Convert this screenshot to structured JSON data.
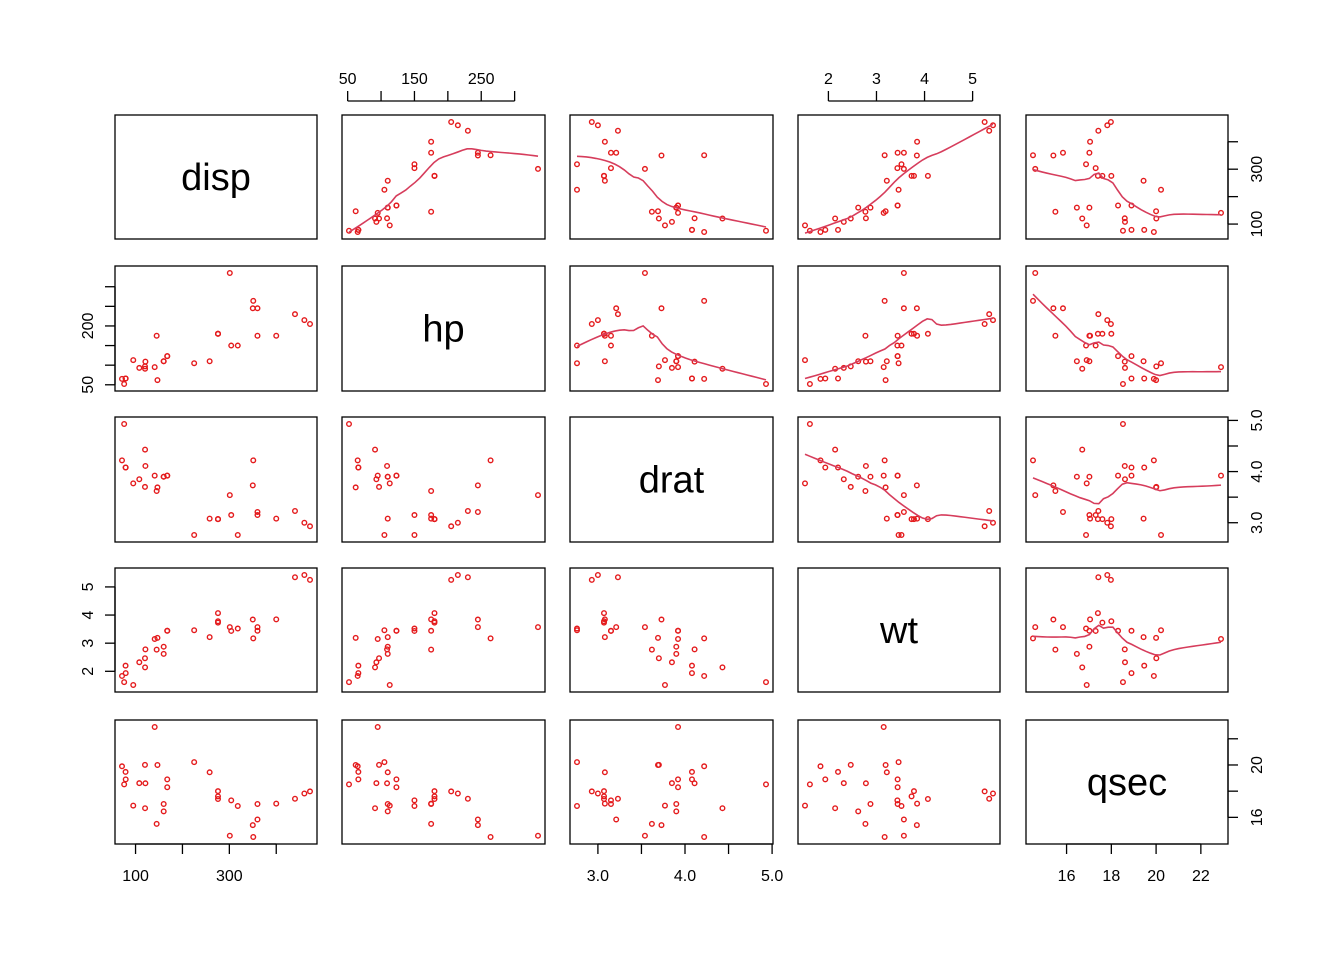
{
  "chart_data": {
    "type": "scatter",
    "title": "",
    "variables": [
      "disp",
      "hp",
      "drat",
      "wt",
      "qsec"
    ],
    "point_color": "#e41a1c",
    "smooth_color": "#d63d5c",
    "smoother_on_upper_panels": true,
    "grid": false,
    "axes": {
      "disp": {
        "range": [
          71.1,
          472
        ],
        "ticks": [
          100,
          300
        ],
        "tick_labels": [
          "100",
          "300"
        ]
      },
      "hp": {
        "range": [
          52,
          335
        ],
        "ticks": [
          50,
          200
        ],
        "tick_labels": [
          "50",
          "200"
        ]
      },
      "drat": {
        "range": [
          2.76,
          4.93
        ],
        "ticks": [
          3.0,
          4.0,
          5.0
        ],
        "tick_labels": [
          "3.0",
          "4.0",
          "5.0"
        ]
      },
      "wt": {
        "range": [
          1.513,
          5.424
        ],
        "ticks": [
          2,
          3,
          4,
          5
        ],
        "tick_labels": [
          "2",
          "3",
          "4",
          "5"
        ]
      },
      "qsec": {
        "range": [
          14.5,
          22.9
        ],
        "ticks": [
          16,
          20
        ],
        "tick_labels": [
          "16",
          "20"
        ]
      }
    },
    "outer_axes": {
      "top": [
        {
          "col": 1,
          "var": "hp",
          "ticks": [
            50,
            100,
            150,
            200,
            250,
            300
          ],
          "labeled": [
            50,
            150,
            250
          ]
        },
        {
          "col": 3,
          "var": "wt",
          "ticks": [
            2,
            3,
            4,
            5
          ],
          "labeled": [
            2,
            3,
            4,
            5
          ]
        }
      ],
      "right": [
        {
          "row": 0,
          "var": "disp",
          "ticks": [
            100,
            200,
            300,
            400
          ],
          "labeled": [
            100,
            300
          ]
        },
        {
          "row": 2,
          "var": "drat",
          "ticks": [
            3.0,
            3.5,
            4.0,
            4.5,
            5.0
          ],
          "labeled": [
            3.0,
            4.0,
            5.0
          ]
        },
        {
          "row": 4,
          "var": "qsec",
          "ticks": [
            16,
            18,
            20,
            22
          ],
          "labeled": [
            16,
            20
          ]
        }
      ],
      "bottom": [
        {
          "col": 0,
          "var": "disp",
          "ticks": [
            100,
            200,
            300,
            400
          ],
          "labeled": [
            100,
            300
          ]
        },
        {
          "col": 2,
          "var": "drat",
          "ticks": [
            3.0,
            3.5,
            4.0,
            4.5,
            5.0
          ],
          "labeled": [
            3.0,
            4.0,
            5.0
          ]
        },
        {
          "col": 4,
          "var": "qsec",
          "ticks": [
            16,
            18,
            20,
            22
          ],
          "labeled": [
            16,
            18,
            20,
            22
          ]
        }
      ],
      "left": [
        {
          "row": 1,
          "var": "hp",
          "ticks": [
            50,
            100,
            150,
            200,
            250,
            300
          ],
          "labeled": [
            50,
            200
          ]
        },
        {
          "row": 3,
          "var": "wt",
          "ticks": [
            2,
            3,
            4,
            5
          ],
          "labeled": [
            2,
            3,
            4,
            5
          ]
        }
      ]
    },
    "data": {
      "disp": [
        160,
        160,
        108,
        258,
        360,
        225,
        360,
        146.7,
        140.8,
        167.6,
        167.6,
        275.8,
        275.8,
        275.8,
        472,
        460,
        440,
        78.7,
        75.7,
        71.1,
        120.1,
        318,
        304,
        350,
        400,
        79,
        120.3,
        95.1,
        351,
        145,
        301,
        121
      ],
      "hp": [
        110,
        110,
        93,
        110,
        175,
        105,
        245,
        62,
        95,
        123,
        123,
        180,
        180,
        180,
        205,
        215,
        230,
        66,
        52,
        65,
        97,
        150,
        150,
        245,
        175,
        66,
        91,
        113,
        264,
        175,
        335,
        109
      ],
      "drat": [
        3.9,
        3.9,
        3.85,
        3.08,
        3.15,
        2.76,
        3.21,
        3.69,
        3.92,
        3.92,
        3.92,
        3.07,
        3.07,
        3.07,
        2.93,
        3.0,
        3.23,
        4.08,
        4.93,
        4.22,
        3.7,
        2.76,
        3.15,
        3.73,
        3.08,
        4.08,
        4.43,
        3.77,
        4.22,
        3.62,
        3.54,
        4.11
      ],
      "wt": [
        2.62,
        2.875,
        2.32,
        3.215,
        3.44,
        3.46,
        3.57,
        3.19,
        3.15,
        3.44,
        3.44,
        4.07,
        3.73,
        3.78,
        5.25,
        5.424,
        5.345,
        2.2,
        1.615,
        1.835,
        2.465,
        3.52,
        3.435,
        3.84,
        3.845,
        1.935,
        2.14,
        1.513,
        3.17,
        2.77,
        3.57,
        2.78
      ],
      "qsec": [
        16.46,
        17.02,
        18.61,
        19.44,
        17.02,
        20.22,
        15.84,
        20.0,
        22.9,
        18.3,
        18.9,
        17.4,
        17.6,
        18.0,
        17.98,
        17.82,
        17.42,
        19.47,
        18.52,
        19.9,
        20.01,
        16.87,
        17.3,
        15.41,
        17.05,
        18.9,
        16.7,
        16.9,
        14.5,
        15.5,
        14.6,
        18.6
      ]
    }
  }
}
